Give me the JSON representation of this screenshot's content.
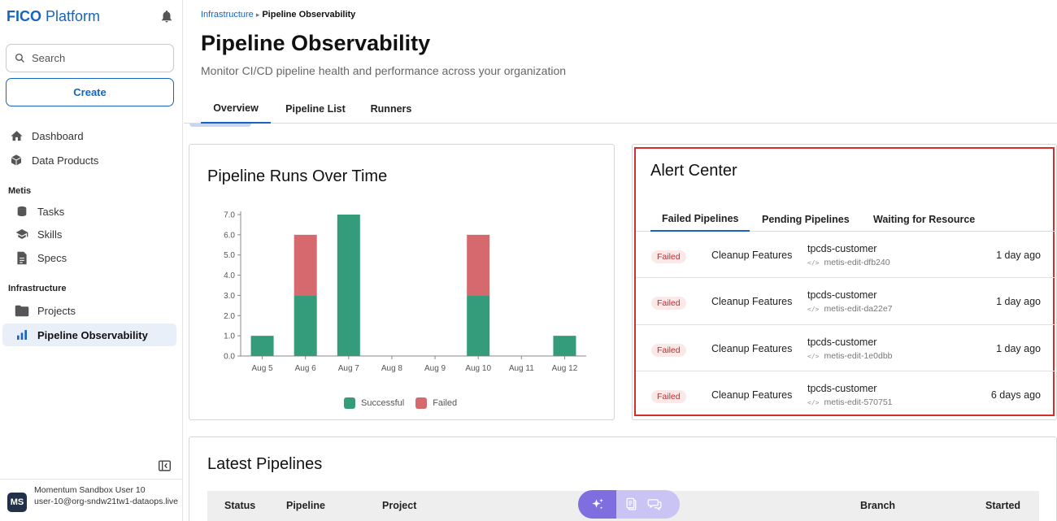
{
  "brand": {
    "bold": "FICO",
    "rest": " Platform"
  },
  "search": {
    "placeholder": "Search"
  },
  "create_label": "Create",
  "nav": {
    "dashboard": "Dashboard",
    "data_products": "Data Products",
    "section_metis": "Metis",
    "tasks": "Tasks",
    "skills": "Skills",
    "specs": "Specs",
    "section_infra": "Infrastructure",
    "projects": "Projects",
    "pipeline_obs": "Pipeline Observability"
  },
  "user": {
    "initials": "MS",
    "name": "Momentum Sandbox User 10",
    "email": "user-10@org-sndw21tw1-dataops.live"
  },
  "breadcrumb": {
    "parent": "Infrastructure",
    "separator": "▸",
    "current": "Pipeline Observability"
  },
  "page": {
    "title": "Pipeline Observability",
    "subtitle": "Monitor CI/CD pipeline health and performance across your organization"
  },
  "tabs": [
    "Overview",
    "Pipeline List",
    "Runners"
  ],
  "chart_card": {
    "title": "Pipeline Runs Over Time"
  },
  "chart_data": {
    "type": "bar",
    "stacked": true,
    "categories": [
      "Aug 5",
      "Aug 6",
      "Aug 7",
      "Aug 8",
      "Aug 9",
      "Aug 10",
      "Aug 11",
      "Aug 12"
    ],
    "series": [
      {
        "name": "Successful",
        "color": "#359c7b",
        "values": [
          1,
          3,
          7,
          0,
          0,
          3,
          0,
          1
        ]
      },
      {
        "name": "Failed",
        "color": "#d6696e",
        "values": [
          0,
          3,
          0,
          0,
          0,
          3,
          0,
          0
        ]
      }
    ],
    "yticks": [
      "0.0",
      "1.0",
      "2.0",
      "3.0",
      "4.0",
      "5.0",
      "6.0",
      "7.0"
    ],
    "ylim": [
      0,
      7
    ],
    "legend": "bottom"
  },
  "alert_center": {
    "title": "Alert Center",
    "tabs": [
      "Failed Pipelines",
      "Pending Pipelines",
      "Waiting for Resource"
    ],
    "rows": [
      {
        "status": "Failed",
        "name": "Cleanup Features",
        "project": "tpcds-customer",
        "branch": "metis-edit-dfb240",
        "time": "1 day ago"
      },
      {
        "status": "Failed",
        "name": "Cleanup Features",
        "project": "tpcds-customer",
        "branch": "metis-edit-da22e7",
        "time": "1 day ago"
      },
      {
        "status": "Failed",
        "name": "Cleanup Features",
        "project": "tpcds-customer",
        "branch": "metis-edit-1e0dbb",
        "time": "1 day ago"
      },
      {
        "status": "Failed",
        "name": "Cleanup Features",
        "project": "tpcds-customer",
        "branch": "metis-edit-570751",
        "time": "6 days ago"
      }
    ]
  },
  "latest": {
    "title": "Latest Pipelines",
    "columns": {
      "status": "Status",
      "pipeline": "Pipeline",
      "project": "Project",
      "branch": "Branch",
      "started": "Started"
    }
  }
}
